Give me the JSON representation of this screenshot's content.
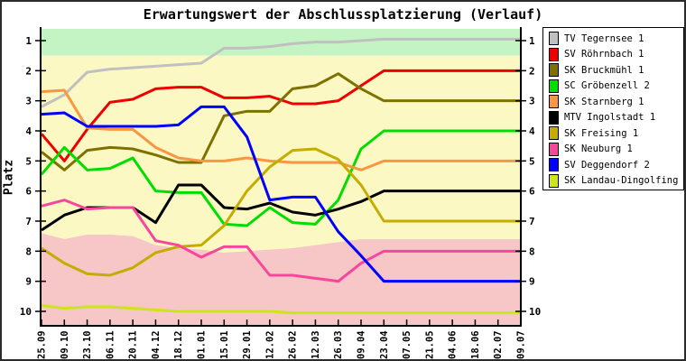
{
  "chart_data": {
    "type": "line",
    "title": "Erwartungswert der Abschlussplatzierung (Verlauf)",
    "ylabel": "Platz",
    "grid": false,
    "legend_position": "right",
    "y_axis": {
      "ticks": [
        1,
        2,
        3,
        4,
        5,
        6,
        7,
        8,
        9,
        10
      ],
      "min": 0.6,
      "max": 10.5,
      "inverted": true,
      "labels_on_both_sides": true
    },
    "x_labels": [
      "25.09",
      "09.10",
      "23.10",
      "06.11",
      "20.11",
      "04.12",
      "18.12",
      "01.01",
      "15.01",
      "29.01",
      "12.02",
      "26.02",
      "12.03",
      "26.03",
      "09.04",
      "23.04",
      "07.05",
      "21.05",
      "04.06",
      "18.06",
      "02.07",
      "09.07"
    ],
    "bands": {
      "promotion": {
        "color": "#C4F3C4",
        "from": 0.6,
        "to": 1.5
      },
      "neutral": {
        "color": "#FBF8C4",
        "from": 1.5,
        "to": "relegation_edge"
      },
      "relegation": {
        "color": "#F7C6C6",
        "to": 10.5,
        "edge_values": [
          7.4,
          7.6,
          7.45,
          7.45,
          7.5,
          7.8,
          7.9,
          7.95,
          8.05,
          8.0,
          7.95,
          7.9,
          7.8,
          7.7,
          7.6,
          7.6,
          7.6,
          7.6,
          7.6,
          7.6,
          7.6,
          7.6
        ]
      }
    },
    "series": [
      {
        "name": "TV Tegernsee 1",
        "color": "#C0C0C0",
        "values": [
          3.2,
          2.8,
          2.05,
          1.95,
          1.9,
          1.85,
          1.8,
          1.75,
          1.25,
          1.25,
          1.2,
          1.1,
          1.05,
          1.05,
          1.0,
          0.95,
          0.95,
          0.95,
          0.95,
          0.95,
          0.95,
          0.95
        ]
      },
      {
        "name": "SV Röhrnbach 1",
        "color": "#EE0000",
        "values": [
          4.1,
          5.0,
          3.95,
          3.05,
          2.95,
          2.6,
          2.55,
          2.55,
          2.9,
          2.9,
          2.85,
          3.1,
          3.1,
          3.0,
          2.5,
          2.0,
          2.0,
          2.0,
          2.0,
          2.0,
          2.0,
          2.0
        ]
      },
      {
        "name": "SK Bruckmühl 1",
        "color": "#7D7100",
        "values": [
          4.7,
          5.3,
          4.65,
          4.55,
          4.6,
          4.8,
          5.05,
          5.05,
          3.5,
          3.35,
          3.35,
          2.6,
          2.5,
          2.1,
          2.6,
          3.0,
          3.0,
          3.0,
          3.0,
          3.0,
          3.0,
          3.0
        ]
      },
      {
        "name": "SC Gröbenzell 2",
        "color": "#00DE00",
        "values": [
          5.45,
          4.55,
          5.3,
          5.25,
          4.9,
          6.0,
          6.05,
          6.05,
          7.1,
          7.15,
          6.55,
          7.05,
          7.1,
          6.3,
          4.6,
          4.0,
          4.0,
          4.0,
          4.0,
          4.0,
          4.0,
          4.0
        ]
      },
      {
        "name": "SK Starnberg 1",
        "color": "#F99642",
        "values": [
          2.7,
          2.65,
          3.9,
          3.95,
          3.95,
          4.55,
          4.9,
          5.0,
          5.0,
          4.9,
          5.0,
          5.05,
          5.05,
          5.05,
          5.3,
          5.0,
          5.0,
          5.0,
          5.0,
          5.0,
          5.0,
          5.0
        ]
      },
      {
        "name": "MTV Ingolstadt 1",
        "color": "#000000",
        "values": [
          7.3,
          6.8,
          6.55,
          6.55,
          6.55,
          7.05,
          5.8,
          5.8,
          6.55,
          6.6,
          6.4,
          6.7,
          6.8,
          6.6,
          6.35,
          6.0,
          6.0,
          6.0,
          6.0,
          6.0,
          6.0,
          6.0
        ]
      },
      {
        "name": "SK Freising 1",
        "color": "#C4AC00",
        "values": [
          7.9,
          8.4,
          8.75,
          8.8,
          8.55,
          8.05,
          7.85,
          7.8,
          7.15,
          6.0,
          5.2,
          4.65,
          4.6,
          4.95,
          5.8,
          7.0,
          7.0,
          7.0,
          7.0,
          7.0,
          7.0,
          7.0
        ]
      },
      {
        "name": "SK Neuburg 1",
        "color": "#F6479D",
        "values": [
          6.5,
          6.3,
          6.6,
          6.55,
          6.55,
          7.65,
          7.8,
          8.2,
          7.85,
          7.85,
          8.8,
          8.8,
          8.9,
          9.0,
          8.4,
          8.0,
          8.0,
          8.0,
          8.0,
          8.0,
          8.0,
          8.0
        ]
      },
      {
        "name": "SV Deggendorf 2",
        "color": "#0000FF",
        "values": [
          3.45,
          3.4,
          3.85,
          3.85,
          3.85,
          3.85,
          3.8,
          3.2,
          3.2,
          4.2,
          6.3,
          6.2,
          6.2,
          7.35,
          8.15,
          9.0,
          9.0,
          9.0,
          9.0,
          9.0,
          9.0,
          9.0
        ]
      },
      {
        "name": "SK Landau-Dingolfing 1",
        "color": "#CDE519",
        "values": [
          9.8,
          9.9,
          9.85,
          9.85,
          9.9,
          9.95,
          10.0,
          10.0,
          10.0,
          10.0,
          10.0,
          10.05,
          10.05,
          10.05,
          10.05,
          10.05,
          10.05,
          10.05,
          10.05,
          10.05,
          10.05,
          10.05
        ]
      }
    ]
  },
  "axis": {
    "color": "#000000"
  }
}
